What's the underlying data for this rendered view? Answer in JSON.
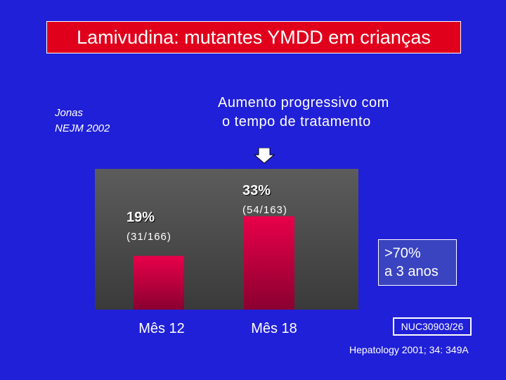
{
  "title": "Lamivudina: mutantes YMDD em crianças",
  "citation": {
    "author": "Jonas",
    "journal": "NEJM 2002"
  },
  "subtitle": [
    "Aumento progressivo com",
    "o tempo de tratamento"
  ],
  "callout": [
    ">70%",
    "a 3 anos"
  ],
  "code": "NUC30903/26",
  "source": "Hepatology 2001; 34: 349A",
  "chart_data": {
    "type": "bar",
    "categories": [
      "Mês 12",
      "Mês 18"
    ],
    "values": [
      19,
      33
    ],
    "data_labels": [
      "19%",
      "33%"
    ],
    "counts": [
      "(31/166)",
      "(54/163)"
    ],
    "ylim": [
      0,
      40
    ],
    "grid": false,
    "colors": {
      "bar_top": "#e8004a",
      "bar_bottom": "#8a0030",
      "plot_background": "#4a4a4a"
    }
  }
}
